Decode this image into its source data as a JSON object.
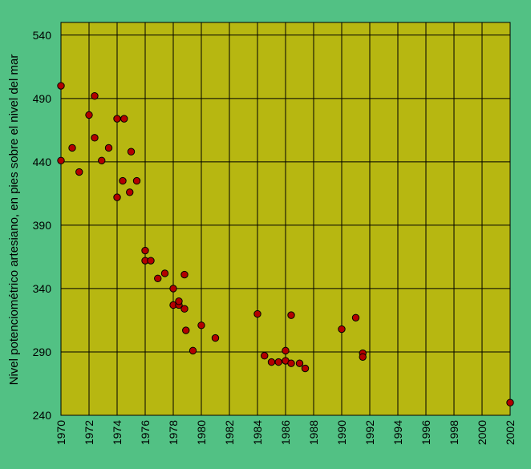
{
  "colors": {
    "background": "#52c184",
    "plot_area": "#b7b711",
    "grid": "#000000",
    "marker_fill": "#b30000",
    "marker_stroke": "#000000"
  },
  "chart_data": {
    "type": "scatter",
    "title": "",
    "xlabel": "",
    "ylabel": "Nivel potenciométrico artesiano, en pies sobre el nivel del mar",
    "xlim": [
      1970,
      2002
    ],
    "ylim": [
      240,
      550
    ],
    "x_ticks": [
      1970,
      1972,
      1974,
      1976,
      1978,
      1980,
      1982,
      1984,
      1986,
      1988,
      1990,
      1992,
      1994,
      1996,
      1998,
      2000,
      2002
    ],
    "y_ticks": [
      240,
      290,
      340,
      390,
      440,
      490,
      540
    ],
    "x_tick_labels": [
      "1970",
      "1972",
      "1974",
      "1976",
      "1978",
      "1980",
      "1982",
      "1984",
      "1986",
      "1988",
      "1990",
      "1992",
      "1994",
      "1996",
      "1998",
      "2000",
      "2002"
    ],
    "y_tick_labels": [
      "240",
      "290",
      "340",
      "390",
      "440",
      "490",
      "540"
    ],
    "grid": true,
    "legend": "none",
    "series": [
      {
        "points": [
          [
            1970.0,
            500
          ],
          [
            1970.0,
            441
          ],
          [
            1970.8,
            451
          ],
          [
            1971.3,
            432
          ],
          [
            1972.0,
            477
          ],
          [
            1972.4,
            459
          ],
          [
            1972.4,
            492
          ],
          [
            1972.9,
            441
          ],
          [
            1973.4,
            451
          ],
          [
            1974.0,
            412
          ],
          [
            1974.0,
            474
          ],
          [
            1974.4,
            425
          ],
          [
            1974.5,
            474
          ],
          [
            1974.9,
            416
          ],
          [
            1975.0,
            448
          ],
          [
            1975.4,
            425
          ],
          [
            1976.0,
            370
          ],
          [
            1976.0,
            362
          ],
          [
            1976.4,
            362
          ],
          [
            1976.9,
            348
          ],
          [
            1977.4,
            352
          ],
          [
            1978.0,
            340
          ],
          [
            1978.0,
            327
          ],
          [
            1978.4,
            327
          ],
          [
            1978.4,
            330
          ],
          [
            1978.8,
            351
          ],
          [
            1978.8,
            324
          ],
          [
            1978.9,
            307
          ],
          [
            1979.4,
            291
          ],
          [
            1980.0,
            311
          ],
          [
            1981.0,
            301
          ],
          [
            1984.0,
            320
          ],
          [
            1984.5,
            287
          ],
          [
            1985.0,
            282
          ],
          [
            1985.5,
            282
          ],
          [
            1986.0,
            291
          ],
          [
            1986.0,
            283
          ],
          [
            1986.4,
            319
          ],
          [
            1986.4,
            281
          ],
          [
            1987.0,
            281
          ],
          [
            1987.4,
            277
          ],
          [
            1990.0,
            308
          ],
          [
            1991.0,
            317
          ],
          [
            1991.5,
            289
          ],
          [
            1991.5,
            286
          ],
          [
            2002.0,
            250
          ]
        ]
      }
    ]
  }
}
